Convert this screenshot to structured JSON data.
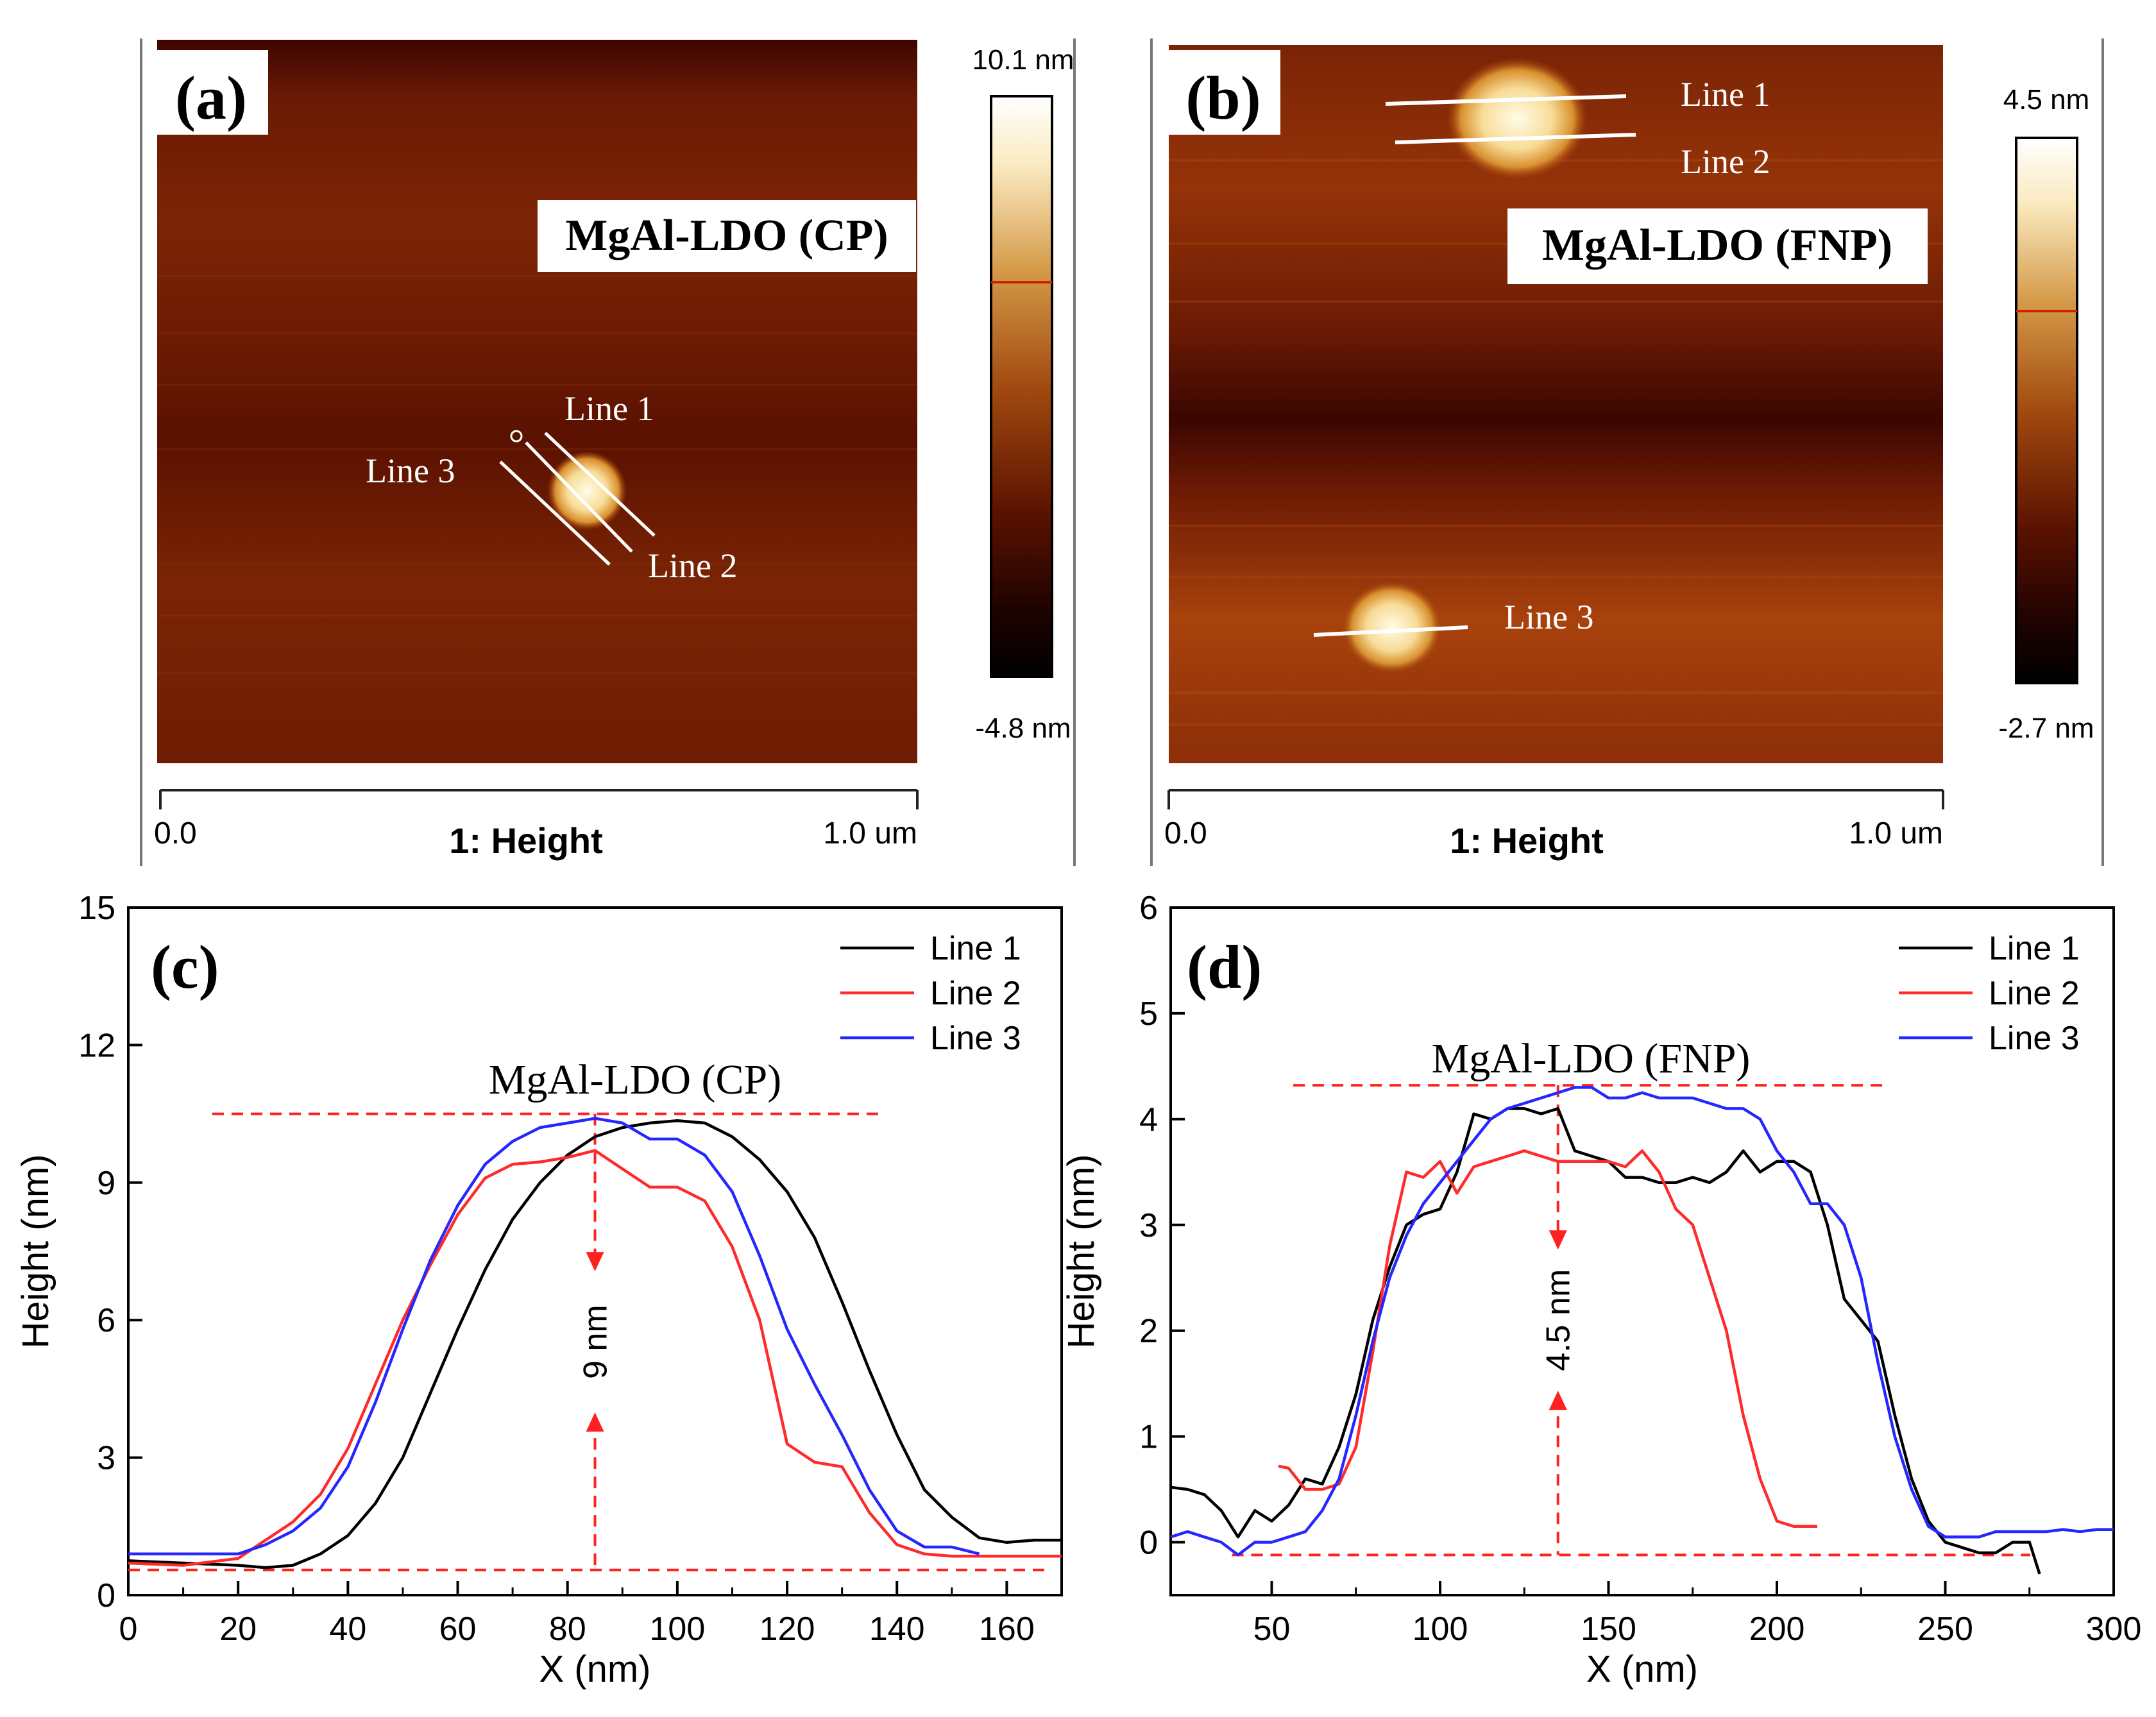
{
  "panel_a": {
    "tag": "(a)",
    "sample_label": "MgAl-LDO (CP)",
    "scale_max": "10.1 nm",
    "scale_min": "-4.8 nm",
    "axis_start": "0.0",
    "axis_title": "1: Height",
    "axis_end": "1.0 um",
    "line_labels": [
      "Line 1",
      "Line 2",
      "Line 3"
    ]
  },
  "panel_b": {
    "tag": "(b)",
    "sample_label": "MgAl-LDO (FNP)",
    "scale_max": "4.5 nm",
    "scale_min": "-2.7 nm",
    "axis_start": "0.0",
    "axis_title": "1: Height",
    "axis_end": "1.0 um",
    "line_labels": [
      "Line 1",
      "Line 2",
      "Line 3"
    ]
  },
  "colors": {
    "line1": "#000000",
    "line2": "#ff2a2a",
    "line3": "#2626ff",
    "annotation": "#ff2020",
    "afm_dark": "#3a0500",
    "afm_mid": "#8a2a06",
    "afm_bright": "#fff6d8"
  },
  "chart_data": [
    {
      "panel": "(c)",
      "type": "line",
      "title": "MgAl-LDO (CP)",
      "xlabel": "X (nm)",
      "ylabel": "Height (nm)",
      "xlim": [
        0,
        170
      ],
      "ylim": [
        0,
        15
      ],
      "xticks": [
        0,
        20,
        40,
        60,
        80,
        100,
        120,
        140,
        160
      ],
      "yticks": [
        0,
        3,
        6,
        9,
        12,
        15
      ],
      "legend": "top-right",
      "annotation": "9 nm",
      "annotation_x": 85,
      "annotation_range": [
        0.55,
        10.5
      ],
      "series": [
        {
          "name": "Line 1",
          "x": [
            0,
            10,
            20,
            25,
            30,
            35,
            40,
            45,
            50,
            55,
            60,
            65,
            70,
            75,
            80,
            85,
            90,
            95,
            100,
            105,
            110,
            115,
            120,
            125,
            130,
            135,
            140,
            145,
            150,
            155,
            160,
            165,
            170
          ],
          "y": [
            0.75,
            0.7,
            0.65,
            0.6,
            0.65,
            0.9,
            1.3,
            2.0,
            3.0,
            4.4,
            5.8,
            7.1,
            8.2,
            9.0,
            9.6,
            10.0,
            10.2,
            10.3,
            10.35,
            10.3,
            10.0,
            9.5,
            8.8,
            7.8,
            6.4,
            4.9,
            3.5,
            2.3,
            1.7,
            1.25,
            1.15,
            1.2,
            1.2
          ]
        },
        {
          "name": "Line 2",
          "x": [
            0,
            10,
            20,
            25,
            30,
            35,
            40,
            45,
            50,
            55,
            60,
            65,
            70,
            75,
            80,
            85,
            90,
            95,
            100,
            105,
            110,
            115,
            120,
            125,
            130,
            135,
            140,
            145,
            150,
            155,
            160,
            165,
            170
          ],
          "y": [
            0.7,
            0.65,
            0.8,
            1.2,
            1.6,
            2.2,
            3.2,
            4.6,
            6.0,
            7.2,
            8.3,
            9.1,
            9.4,
            9.45,
            9.55,
            9.7,
            9.3,
            8.9,
            8.9,
            8.6,
            7.6,
            6.0,
            3.3,
            2.9,
            2.8,
            1.8,
            1.1,
            0.9,
            0.85,
            0.85,
            0.85,
            0.85,
            0.85
          ]
        },
        {
          "name": "Line 3",
          "x": [
            0,
            10,
            20,
            25,
            30,
            35,
            40,
            45,
            50,
            55,
            60,
            65,
            70,
            75,
            80,
            85,
            90,
            95,
            100,
            105,
            110,
            115,
            120,
            125,
            130,
            135,
            140,
            145,
            150,
            155
          ],
          "y": [
            0.9,
            0.9,
            0.9,
            1.1,
            1.4,
            1.9,
            2.8,
            4.2,
            5.8,
            7.3,
            8.5,
            9.4,
            9.9,
            10.2,
            10.3,
            10.4,
            10.3,
            9.95,
            9.95,
            9.6,
            8.8,
            7.4,
            5.8,
            4.6,
            3.5,
            2.3,
            1.4,
            1.05,
            1.05,
            0.9
          ]
        }
      ]
    },
    {
      "panel": "(d)",
      "type": "line",
      "title": "MgAl-LDO (FNP)",
      "xlabel": "X (nm)",
      "ylabel": "Height (nm)",
      "xlim": [
        20,
        300
      ],
      "ylim": [
        -0.5,
        6
      ],
      "xticks": [
        50,
        100,
        150,
        200,
        250,
        300
      ],
      "yticks": [
        0,
        1,
        2,
        3,
        4,
        5,
        6
      ],
      "legend": "top-right",
      "annotation": "4.5 nm",
      "annotation_x": 135,
      "annotation_range": [
        -0.12,
        4.32
      ],
      "series": [
        {
          "name": "Line 1",
          "x": [
            20,
            25,
            30,
            35,
            40,
            45,
            50,
            55,
            60,
            65,
            70,
            75,
            80,
            85,
            90,
            95,
            100,
            105,
            110,
            115,
            120,
            125,
            130,
            135,
            140,
            145,
            150,
            155,
            160,
            165,
            170,
            175,
            180,
            185,
            190,
            195,
            200,
            205,
            210,
            215,
            220,
            225,
            230,
            235,
            240,
            245,
            250,
            255,
            260,
            265,
            270,
            275,
            278
          ],
          "y": [
            0.52,
            0.5,
            0.45,
            0.3,
            0.05,
            0.3,
            0.2,
            0.35,
            0.6,
            0.55,
            0.9,
            1.4,
            2.1,
            2.6,
            3.0,
            3.1,
            3.15,
            3.5,
            4.05,
            4.0,
            4.1,
            4.1,
            4.05,
            4.1,
            3.7,
            3.65,
            3.6,
            3.45,
            3.45,
            3.4,
            3.4,
            3.45,
            3.4,
            3.5,
            3.7,
            3.5,
            3.6,
            3.6,
            3.5,
            3.0,
            2.3,
            2.1,
            1.9,
            1.2,
            0.6,
            0.2,
            0.0,
            -0.05,
            -0.1,
            -0.1,
            0.0,
            0.0,
            -0.3
          ]
        },
        {
          "name": "Line 2",
          "x": [
            52,
            55,
            60,
            65,
            70,
            75,
            80,
            85,
            90,
            95,
            100,
            105,
            110,
            115,
            120,
            125,
            130,
            135,
            140,
            145,
            150,
            155,
            160,
            165,
            170,
            175,
            180,
            185,
            190,
            195,
            200,
            205,
            210,
            212
          ],
          "y": [
            0.72,
            0.7,
            0.5,
            0.5,
            0.55,
            0.9,
            1.8,
            2.8,
            3.5,
            3.45,
            3.6,
            3.3,
            3.55,
            3.6,
            3.65,
            3.7,
            3.65,
            3.6,
            3.6,
            3.6,
            3.6,
            3.55,
            3.7,
            3.5,
            3.15,
            3.0,
            2.5,
            2.0,
            1.2,
            0.6,
            0.2,
            0.15,
            0.15,
            0.15
          ]
        },
        {
          "name": "Line 3",
          "x": [
            20,
            25,
            30,
            35,
            40,
            45,
            50,
            55,
            60,
            65,
            70,
            75,
            80,
            85,
            90,
            95,
            100,
            105,
            110,
            115,
            120,
            125,
            130,
            135,
            140,
            145,
            150,
            155,
            160,
            165,
            170,
            175,
            180,
            185,
            190,
            195,
            200,
            205,
            210,
            215,
            220,
            225,
            230,
            235,
            240,
            245,
            250,
            255,
            260,
            265,
            270,
            275,
            280,
            285,
            290,
            295,
            300
          ],
          "y": [
            0.05,
            0.1,
            0.05,
            0.0,
            -0.12,
            0.0,
            0.0,
            0.05,
            0.1,
            0.3,
            0.6,
            1.2,
            1.9,
            2.5,
            2.9,
            3.2,
            3.4,
            3.6,
            3.8,
            4.0,
            4.1,
            4.15,
            4.2,
            4.25,
            4.3,
            4.3,
            4.2,
            4.2,
            4.25,
            4.2,
            4.2,
            4.2,
            4.15,
            4.1,
            4.1,
            4.0,
            3.7,
            3.5,
            3.2,
            3.2,
            3.0,
            2.5,
            1.7,
            1.0,
            0.5,
            0.15,
            0.05,
            0.05,
            0.05,
            0.1,
            0.1,
            0.1,
            0.1,
            0.12,
            0.1,
            0.12,
            0.12
          ]
        }
      ]
    }
  ]
}
